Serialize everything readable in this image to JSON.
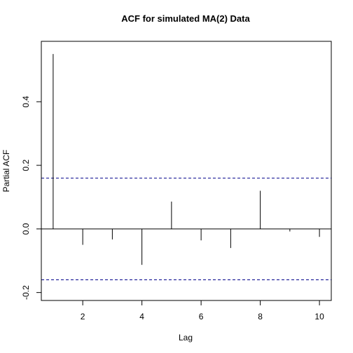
{
  "chart_data": {
    "type": "bar",
    "title": "ACF for simulated MA(2) Data",
    "xlabel": "Lag",
    "ylabel": "Partial ACF",
    "x": [
      1,
      2,
      3,
      4,
      5,
      6,
      7,
      8,
      9,
      10
    ],
    "values": [
      0.55,
      -0.05,
      -0.033,
      -0.113,
      0.086,
      -0.036,
      -0.06,
      0.12,
      -0.008,
      -0.025
    ],
    "xlim": [
      0.6,
      10.4
    ],
    "ylim": [
      -0.225,
      0.59
    ],
    "x_ticks": [
      2,
      4,
      6,
      8,
      10
    ],
    "x_tick_labels": [
      "2",
      "4",
      "6",
      "8",
      "10"
    ],
    "y_ticks": [
      -0.2,
      0.0,
      0.2,
      0.4
    ],
    "y_tick_labels": [
      "-0.2",
      "0.0",
      "0.2",
      "0.4"
    ],
    "confidence_bounds": [
      0.16,
      -0.16
    ],
    "zero_line": 0.0,
    "grid": false,
    "colors": {
      "bars": "#000000",
      "confidence": "#00008b",
      "axes": "#000000"
    }
  }
}
